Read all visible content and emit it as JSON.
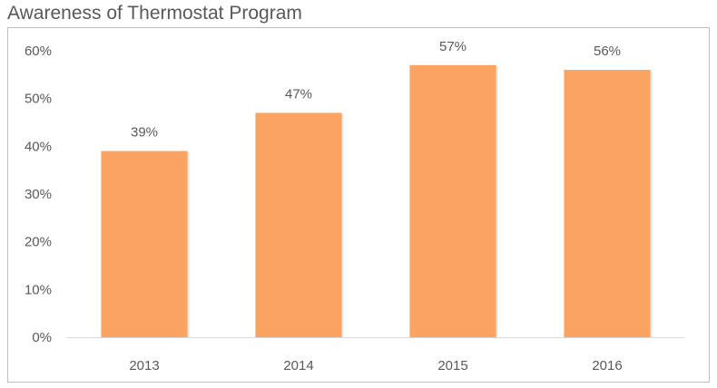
{
  "chart_data": {
    "type": "bar",
    "title": "Awareness of Thermostat Program",
    "categories": [
      "2013",
      "2014",
      "2015",
      "2016"
    ],
    "values": [
      39,
      47,
      57,
      56
    ],
    "data_labels": [
      "39%",
      "47%",
      "57%",
      "56%"
    ],
    "y_ticks": [
      "0%",
      "10%",
      "20%",
      "30%",
      "40%",
      "50%",
      "60%"
    ],
    "ylim": [
      0,
      60
    ],
    "xlabel": "",
    "ylabel": "",
    "grid": false,
    "legend": "none",
    "bar_color": "#FBA462"
  }
}
